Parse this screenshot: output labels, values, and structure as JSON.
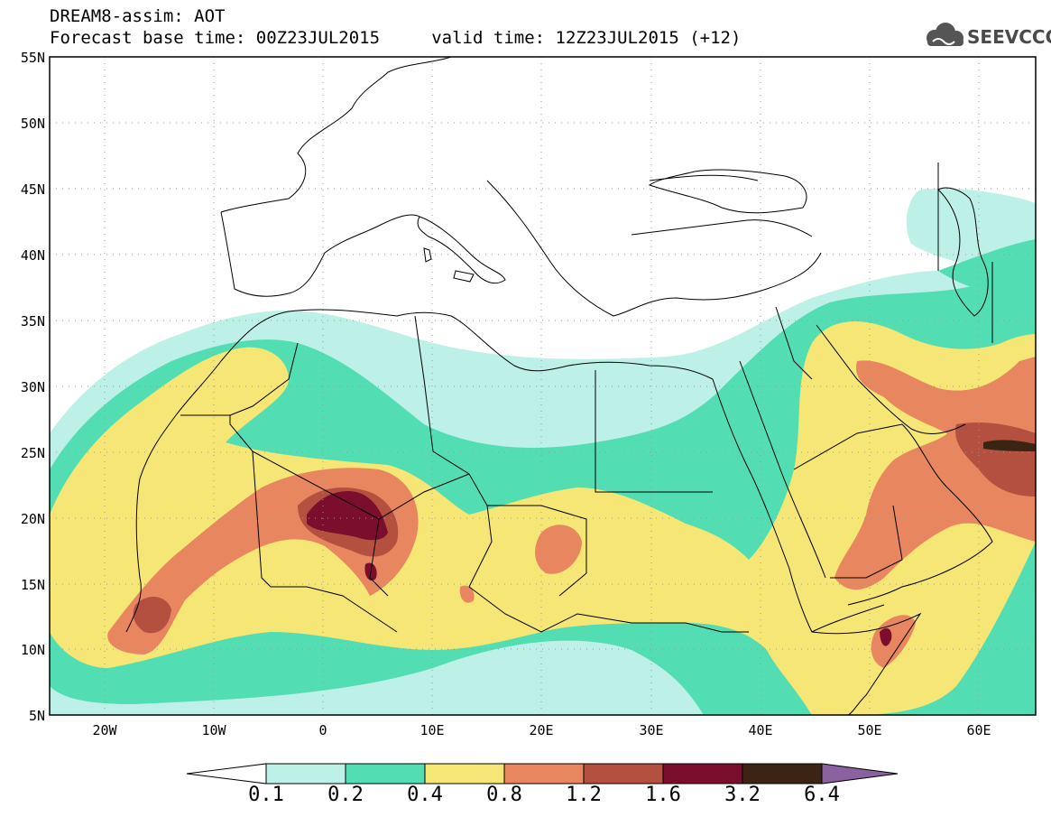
{
  "header": {
    "title_line1": "DREAM8-assim: AOT",
    "title_line2": "Forecast base time: 00Z23JUL2015     valid time: 12Z23JUL2015 (+12)",
    "logo_text": "SEEVCCC"
  },
  "map": {
    "variable": "AOT",
    "lat_range": [
      5,
      55
    ],
    "lon_range": [
      -25,
      65
    ],
    "lat_labels": [
      "55N",
      "50N",
      "45N",
      "40N",
      "35N",
      "30N",
      "25N",
      "20N",
      "15N",
      "10N",
      "5N"
    ],
    "lon_labels": [
      "20W",
      "10W",
      "0",
      "10E",
      "20E",
      "30E",
      "40E",
      "50E",
      "60E"
    ],
    "gridlines": "dotted"
  },
  "colorbar": {
    "levels": [
      "0.1",
      "0.2",
      "0.4",
      "0.8",
      "1.2",
      "1.6",
      "3.2",
      "6.4"
    ],
    "colors": [
      "#ffffff",
      "#bdf0e6",
      "#52ddb2",
      "#f5e675",
      "#e88660",
      "#b4503f",
      "#7a0e2c",
      "#3b2414",
      "#8b62a0"
    ]
  }
}
